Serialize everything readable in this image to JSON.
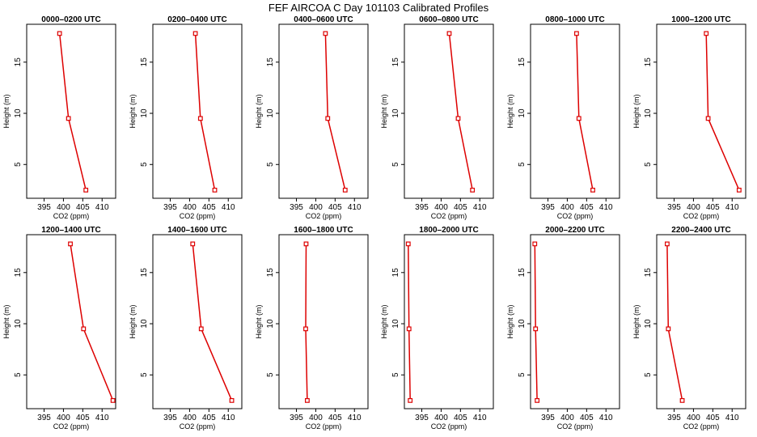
{
  "title": "FEF AIRCOA C  Day 101103  Calibrated Profiles",
  "chart_data": {
    "type": "line",
    "xlabel": "CO2 (ppm)",
    "ylabel": "Height (m)",
    "xlim": [
      390.5,
      413.5
    ],
    "ylim": [
      1.7,
      18.7
    ],
    "xticks": [
      395,
      400,
      405,
      410
    ],
    "yticks": [
      5,
      10,
      15
    ],
    "color": "#dd0000",
    "panels": [
      {
        "title": "0000–0200 UTC",
        "points": [
          {
            "x": 399.0,
            "y": 17.8
          },
          {
            "x": 401.3,
            "y": 9.5
          },
          {
            "x": 405.8,
            "y": 2.5
          }
        ]
      },
      {
        "title": "0200–0400 UTC",
        "points": [
          {
            "x": 401.5,
            "y": 17.8
          },
          {
            "x": 402.8,
            "y": 9.5
          },
          {
            "x": 406.5,
            "y": 2.5
          }
        ]
      },
      {
        "title": "0400–0600 UTC",
        "points": [
          {
            "x": 402.5,
            "y": 17.8
          },
          {
            "x": 403.1,
            "y": 9.5
          },
          {
            "x": 407.6,
            "y": 2.5
          }
        ]
      },
      {
        "title": "0600–0800 UTC",
        "points": [
          {
            "x": 402.1,
            "y": 17.8
          },
          {
            "x": 404.4,
            "y": 9.5
          },
          {
            "x": 408.1,
            "y": 2.5
          }
        ]
      },
      {
        "title": "0800–1000 UTC",
        "points": [
          {
            "x": 402.4,
            "y": 17.8
          },
          {
            "x": 403.0,
            "y": 9.5
          },
          {
            "x": 406.6,
            "y": 2.5
          }
        ]
      },
      {
        "title": "1000–1200 UTC",
        "points": [
          {
            "x": 403.3,
            "y": 17.8
          },
          {
            "x": 403.8,
            "y": 9.5
          },
          {
            "x": 411.8,
            "y": 2.5
          }
        ]
      },
      {
        "title": "1200–1400 UTC",
        "points": [
          {
            "x": 401.8,
            "y": 17.8
          },
          {
            "x": 405.2,
            "y": 9.5
          },
          {
            "x": 412.8,
            "y": 2.5
          }
        ]
      },
      {
        "title": "1400–1600 UTC",
        "points": [
          {
            "x": 400.8,
            "y": 17.8
          },
          {
            "x": 403.0,
            "y": 9.5
          },
          {
            "x": 410.9,
            "y": 2.5
          }
        ]
      },
      {
        "title": "1600–1800 UTC",
        "points": [
          {
            "x": 397.5,
            "y": 17.8
          },
          {
            "x": 397.4,
            "y": 9.5
          },
          {
            "x": 397.8,
            "y": 2.5
          }
        ]
      },
      {
        "title": "1800–2000 UTC",
        "points": [
          {
            "x": 391.5,
            "y": 17.8
          },
          {
            "x": 391.7,
            "y": 9.5
          },
          {
            "x": 392.0,
            "y": 2.5
          }
        ]
      },
      {
        "title": "2000–2200 UTC",
        "points": [
          {
            "x": 391.6,
            "y": 17.8
          },
          {
            "x": 391.8,
            "y": 9.5
          },
          {
            "x": 392.2,
            "y": 2.5
          }
        ]
      },
      {
        "title": "2200–2400 UTC",
        "points": [
          {
            "x": 393.2,
            "y": 17.8
          },
          {
            "x": 393.5,
            "y": 9.5
          },
          {
            "x": 397.1,
            "y": 2.5
          }
        ]
      }
    ]
  }
}
